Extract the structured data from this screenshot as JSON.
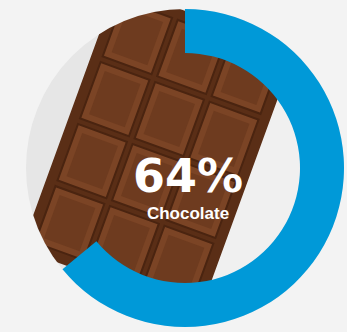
{
  "chart_data": {
    "type": "donut",
    "categories": [
      "Chocolate"
    ],
    "values": [
      64
    ],
    "value_labels": [
      "64%"
    ],
    "color": "#0099d8",
    "ylim": [
      0,
      100
    ]
  }
}
